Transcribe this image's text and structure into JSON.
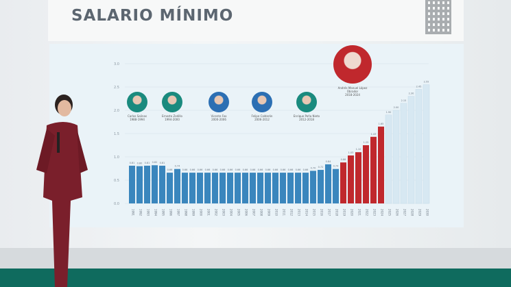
{
  "header": {
    "title": "SALARIO MÍNIMO"
  },
  "presidents": [
    {
      "name": "Carlos Salinas",
      "term": "1988-1994"
    },
    {
      "name": "Ernesto Zedillo",
      "term": "1994-2000"
    },
    {
      "name": "Vicente Fox",
      "term": "2000-2006"
    },
    {
      "name": "Felipe Calderón",
      "term": "2006-2012"
    },
    {
      "name": "Enrique Peña Nieto",
      "term": "2012-2018"
    },
    {
      "name": "Andrés Manuel López Obrador",
      "term": "2018-2024"
    }
  ],
  "colors": {
    "blue_bars": "#3a86bd",
    "red_bars": "#c0282d",
    "projection_bars": "#d7e8f2",
    "floor": "#0f6b5e",
    "suit": "#7a1f2b"
  },
  "chart_data": {
    "type": "bar",
    "title": "SALARIO MÍNIMO",
    "xlabel": "",
    "ylabel": "",
    "ylim": [
      0,
      3.0
    ],
    "yticks": [
      "0.0",
      "0.5",
      "1.0",
      "1.5",
      "2.0",
      "2.5",
      "3.0"
    ],
    "grid": true,
    "categories": [
      "1991",
      "1992",
      "1993",
      "1994",
      "1995",
      "1996",
      "1997",
      "1998",
      "1999",
      "2000",
      "2001",
      "2002",
      "2003",
      "2004",
      "2005",
      "2006",
      "2007",
      "2008",
      "2009",
      "2010",
      "2011",
      "2012",
      "2013",
      "2014",
      "2015",
      "2016",
      "2017",
      "2018",
      "2019",
      "2020",
      "2021",
      "2022",
      "2023",
      "2024",
      "2025",
      "2026",
      "2027",
      "2028",
      "2029",
      "2030"
    ],
    "series": [
      {
        "group": "historic",
        "values": [
          0.81,
          0.8,
          0.81,
          0.82,
          0.81,
          0.66,
          0.74,
          0.66,
          0.66,
          0.66,
          0.66,
          0.66,
          0.66,
          0.66,
          0.66,
          0.66,
          0.66,
          0.66,
          0.66,
          0.66,
          0.66,
          0.66,
          0.66,
          0.66,
          0.7,
          0.72,
          0.84,
          0.74,
          null,
          null,
          null,
          null,
          null,
          null,
          null,
          null,
          null,
          null,
          null,
          null
        ]
      },
      {
        "group": "amlo",
        "values": [
          null,
          null,
          null,
          null,
          null,
          null,
          null,
          null,
          null,
          null,
          null,
          null,
          null,
          null,
          null,
          null,
          null,
          null,
          null,
          null,
          null,
          null,
          null,
          null,
          null,
          null,
          null,
          null,
          0.88,
          1.03,
          1.1,
          1.25,
          1.43,
          1.65,
          null,
          null,
          null,
          null,
          null,
          null
        ]
      },
      {
        "group": "projection",
        "values": [
          null,
          null,
          null,
          null,
          null,
          null,
          null,
          null,
          null,
          null,
          null,
          null,
          null,
          null,
          null,
          null,
          null,
          null,
          null,
          null,
          null,
          null,
          null,
          null,
          null,
          null,
          null,
          null,
          null,
          null,
          null,
          null,
          null,
          null,
          1.9,
          2.0,
          2.15,
          2.3,
          2.45,
          2.55
        ]
      }
    ]
  }
}
